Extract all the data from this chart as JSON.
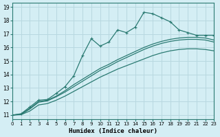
{
  "xlabel": "Humidex (Indice chaleur)",
  "bg_color": "#d4eef4",
  "grid_color": "#b8d8e0",
  "line_color": "#2a7a72",
  "xlim": [
    0,
    23
  ],
  "ylim": [
    10.7,
    19.3
  ],
  "xticks": [
    0,
    1,
    2,
    3,
    4,
    5,
    6,
    7,
    8,
    9,
    10,
    11,
    12,
    13,
    14,
    15,
    16,
    17,
    18,
    19,
    20,
    21,
    22,
    23
  ],
  "yticks": [
    11,
    12,
    13,
    14,
    15,
    16,
    17,
    18,
    19
  ],
  "line1_x": [
    0,
    1,
    2,
    3,
    4,
    5,
    6,
    7,
    8,
    9,
    10,
    11,
    12,
    13,
    14,
    15,
    16,
    17,
    18,
    19,
    20,
    21,
    22,
    23
  ],
  "line1_y": [
    11,
    11.1,
    11.6,
    12.1,
    12.15,
    12.6,
    13.1,
    13.9,
    15.4,
    16.65,
    16.1,
    16.4,
    17.3,
    17.1,
    17.5,
    18.6,
    18.5,
    18.2,
    17.9,
    17.3,
    17.1,
    16.9,
    16.9,
    16.9
  ],
  "line2_x": [
    0,
    1,
    2,
    3,
    4,
    5,
    6,
    7,
    8,
    9,
    10,
    11,
    12,
    13,
    14,
    15,
    16,
    17,
    18,
    19,
    20,
    21,
    22,
    23
  ],
  "line2_y": [
    11,
    11.05,
    11.45,
    11.95,
    12.05,
    12.35,
    12.7,
    13.1,
    13.5,
    13.9,
    14.3,
    14.6,
    14.95,
    15.25,
    15.55,
    15.85,
    16.1,
    16.3,
    16.45,
    16.55,
    16.6,
    16.6,
    16.55,
    16.4
  ],
  "line3_x": [
    0,
    1,
    2,
    3,
    4,
    5,
    6,
    7,
    8,
    9,
    10,
    11,
    12,
    13,
    14,
    15,
    16,
    17,
    18,
    19,
    20,
    21,
    22,
    23
  ],
  "line3_y": [
    11,
    11.07,
    11.5,
    12.0,
    12.1,
    12.4,
    12.8,
    13.25,
    13.65,
    14.05,
    14.45,
    14.75,
    15.1,
    15.4,
    15.7,
    16.0,
    16.25,
    16.45,
    16.6,
    16.7,
    16.75,
    16.75,
    16.7,
    16.55
  ],
  "line4_x": [
    0,
    1,
    2,
    3,
    4,
    5,
    6,
    7,
    8,
    9,
    10,
    11,
    12,
    13,
    14,
    15,
    16,
    17,
    18,
    19,
    20,
    21,
    22,
    23
  ],
  "line4_y": [
    11,
    11.03,
    11.3,
    11.75,
    11.85,
    12.1,
    12.4,
    12.75,
    13.1,
    13.45,
    13.8,
    14.1,
    14.4,
    14.65,
    14.9,
    15.15,
    15.4,
    15.6,
    15.75,
    15.85,
    15.9,
    15.9,
    15.85,
    15.75
  ]
}
